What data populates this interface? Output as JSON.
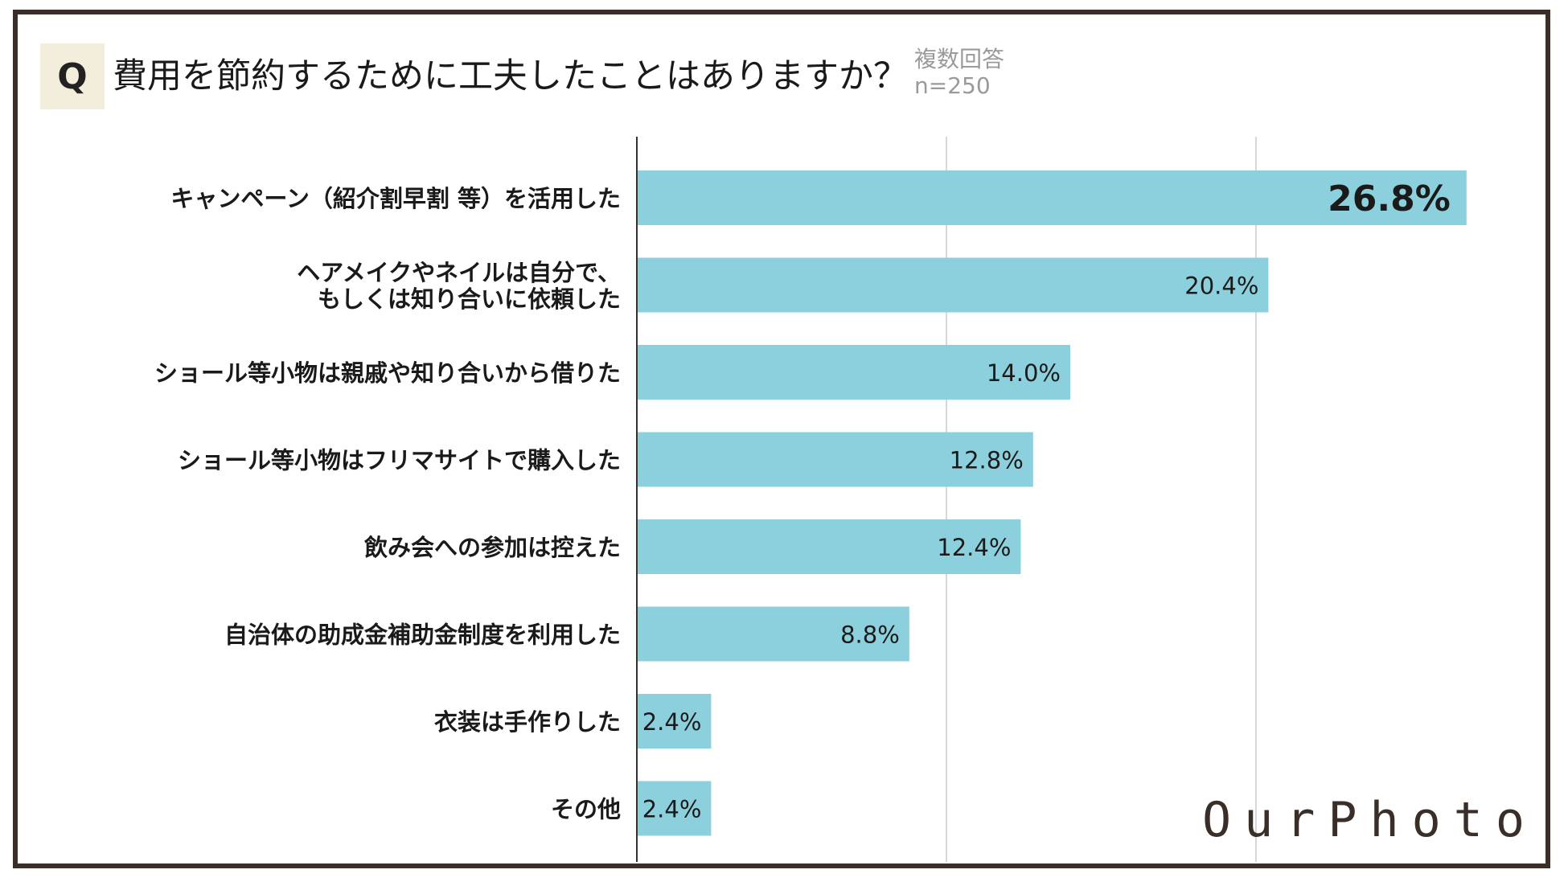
{
  "header": {
    "q_label": "Q",
    "title": "費用を節約するために工夫したことはありますか？",
    "note_line1": "複数回答",
    "note_line2": "n=250"
  },
  "colors": {
    "bar": "#8dd0dd",
    "axis": "#333333",
    "grid": "#d8d8d8",
    "frame": "#3a2e28",
    "q_background": "#f3eddb"
  },
  "logo": "OurPhoto",
  "chart_data": {
    "type": "bar",
    "orientation": "horizontal",
    "categories": [
      [
        "キャンペーン（紹介割早割 等）を活用した"
      ],
      [
        "ヘアメイクやネイルは自分で、",
        "もしくは知り合いに依頼した"
      ],
      [
        "ショール等小物は親戚や知り合いから借りた"
      ],
      [
        "ショール等小物はフリマサイトで購入した"
      ],
      [
        "飲み会への参加は控えた"
      ],
      [
        "自治体の助成金補助金制度を利用した"
      ],
      [
        "衣装は手作りした"
      ],
      [
        "その他"
      ]
    ],
    "values": [
      26.8,
      20.4,
      14.0,
      12.8,
      12.4,
      8.8,
      2.4,
      2.4
    ],
    "labels": [
      "26.8%",
      "20.4%",
      "14.0%",
      "12.8%",
      "12.4%",
      "8.8%",
      "2.4%",
      "2.4%"
    ],
    "xlim": [
      0,
      30
    ],
    "gridlines": [
      10,
      20
    ],
    "highlight_index": 0,
    "unit": "%"
  }
}
